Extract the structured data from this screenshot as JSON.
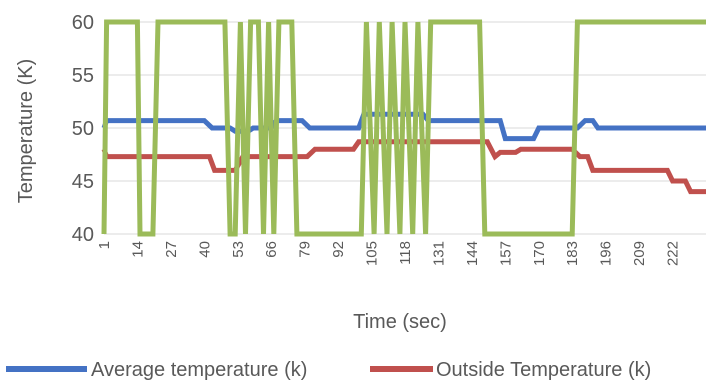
{
  "chart_data": {
    "type": "line",
    "title": "",
    "xlabel": "Time (sec)",
    "ylabel": "Temperature (K)",
    "ylim": [
      40,
      60
    ],
    "yticks": [
      40,
      45,
      50,
      55,
      60
    ],
    "xlim": [
      1,
      235
    ],
    "xticks": [
      1,
      14,
      27,
      40,
      53,
      66,
      79,
      92,
      105,
      118,
      131,
      144,
      157,
      170,
      183,
      196,
      209,
      222
    ],
    "grid": "horizontal",
    "legend": "bottom",
    "series": [
      {
        "name": "Average temperature (k)",
        "color": "#4472C4",
        "points": [
          [
            1,
            50
          ],
          [
            2,
            50.7
          ],
          [
            40,
            50.7
          ],
          [
            43,
            50
          ],
          [
            50,
            50
          ],
          [
            52,
            49.7
          ],
          [
            57,
            49.7
          ],
          [
            59,
            50
          ],
          [
            66,
            50
          ],
          [
            68,
            50.7
          ],
          [
            78,
            50.7
          ],
          [
            81,
            50
          ],
          [
            100,
            50
          ],
          [
            102,
            51.3
          ],
          [
            125,
            51.3
          ],
          [
            127,
            50.7
          ],
          [
            155,
            50.7
          ],
          [
            157,
            49
          ],
          [
            168,
            49
          ],
          [
            170,
            50
          ],
          [
            185,
            50
          ],
          [
            188,
            50.7
          ],
          [
            191,
            50.7
          ],
          [
            193,
            50
          ],
          [
            235,
            50
          ]
        ]
      },
      {
        "name": "Outside Temperature (k)",
        "color": "#C0504D",
        "points": [
          [
            1,
            48
          ],
          [
            2,
            47.3
          ],
          [
            31,
            47.3
          ],
          [
            33,
            47.3
          ],
          [
            42,
            47.3
          ],
          [
            44,
            46
          ],
          [
            52,
            46
          ],
          [
            55,
            47.3
          ],
          [
            80,
            47.3
          ],
          [
            83,
            48
          ],
          [
            98,
            48
          ],
          [
            100,
            48.7
          ],
          [
            111,
            48.7
          ],
          [
            114,
            48.7
          ],
          [
            150,
            48.7
          ],
          [
            153,
            47.3
          ],
          [
            155,
            47.7
          ],
          [
            161,
            47.7
          ],
          [
            163,
            48
          ],
          [
            183,
            48
          ],
          [
            186,
            47.3
          ],
          [
            189,
            47.3
          ],
          [
            191,
            46
          ],
          [
            220,
            46
          ],
          [
            222,
            45
          ],
          [
            227,
            45
          ],
          [
            229,
            44
          ],
          [
            235,
            44
          ]
        ]
      },
      {
        "name": "",
        "color": "#9BBB59",
        "points": [
          [
            1,
            40
          ],
          [
            2,
            60
          ],
          [
            14,
            60
          ],
          [
            15,
            40
          ],
          [
            20,
            40
          ],
          [
            22,
            60
          ],
          [
            48,
            60
          ],
          [
            50,
            40
          ],
          [
            52,
            40
          ],
          [
            54,
            60
          ],
          [
            56,
            40
          ],
          [
            58,
            60
          ],
          [
            61,
            60
          ],
          [
            63,
            40
          ],
          [
            65,
            60
          ],
          [
            67,
            40
          ],
          [
            69,
            60
          ],
          [
            74,
            60
          ],
          [
            76,
            40
          ],
          [
            101,
            40
          ],
          [
            103,
            60
          ],
          [
            106,
            40
          ],
          [
            108,
            60
          ],
          [
            111,
            40
          ],
          [
            113,
            60
          ],
          [
            116,
            40
          ],
          [
            118,
            60
          ],
          [
            121,
            40
          ],
          [
            123,
            60
          ],
          [
            126,
            40
          ],
          [
            128,
            60
          ],
          [
            147,
            60
          ],
          [
            149,
            40
          ],
          [
            183,
            40
          ],
          [
            185,
            60
          ],
          [
            235,
            60
          ]
        ]
      }
    ]
  }
}
